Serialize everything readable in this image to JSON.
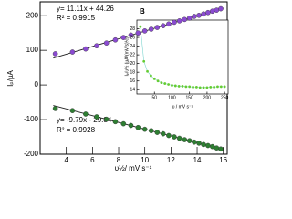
{
  "chart_data": [
    {
      "type": "scatter",
      "xlabel": "υ½/ mV s⁻¹",
      "ylabel": "Iₚ/µA",
      "annotations": [
        "y= 11.11x + 44.26",
        "R² = 0.9915",
        "y= -9.79x - 29.84",
        "R² = 0.9928"
      ],
      "xlim": [
        2,
        16.3
      ],
      "ylim": [
        -200,
        240
      ],
      "xticks": [
        4,
        6,
        8,
        10,
        12,
        14,
        16
      ],
      "yticks": [
        -200,
        -100,
        0,
        100,
        200
      ],
      "x": [
        3.16,
        4.47,
        5.48,
        6.32,
        7.07,
        7.75,
        8.37,
        8.94,
        9.49,
        10,
        10.49,
        10.95,
        11.4,
        11.83,
        12.25,
        12.65,
        13.04,
        13.42,
        13.78,
        14.14,
        14.49,
        14.83,
        15.17,
        15.49,
        15.81
      ],
      "series": [
        {
          "color": "#8a4bd0",
          "values": [
            90,
            95,
            104,
            113,
            121,
            130,
            137,
            144,
            150,
            156,
            161,
            166,
            171,
            176,
            181,
            185,
            189,
            193,
            198,
            201,
            205,
            209,
            213,
            216,
            220
          ]
        },
        {
          "color": "#2e7d32",
          "values": [
            -68,
            -74,
            -84,
            -92,
            -99,
            -106,
            -112,
            -117,
            -123,
            -128,
            -132,
            -137,
            -141,
            -146,
            -150,
            -154,
            -158,
            -161,
            -165,
            -168,
            -172,
            -175,
            -178,
            -182,
            -185
          ]
        }
      ],
      "fit_lines": [
        {
          "color": "#222222",
          "x": [
            3,
            16
          ],
          "values": [
            77.6,
            222.0
          ]
        },
        {
          "color": "#222222",
          "x": [
            3,
            16
          ],
          "values": [
            -59.2,
            -186.5
          ]
        }
      ]
    },
    {
      "type": "scatter",
      "title": "B",
      "xlabel": "υ / mV s⁻¹",
      "ylabel": "Iₚ/υ½ (µA/(mV/s)½)",
      "xlim": [
        0,
        260
      ],
      "ylim": [
        13,
        30
      ],
      "xticks": [
        50,
        100,
        150,
        200,
        250
      ],
      "yticks": [
        14,
        16,
        18,
        20,
        22,
        24,
        26,
        28
      ],
      "x": [
        10,
        20,
        30,
        40,
        50,
        60,
        70,
        80,
        90,
        100,
        110,
        120,
        130,
        140,
        150,
        160,
        170,
        180,
        190,
        200,
        210,
        220,
        230,
        240,
        250
      ],
      "series": [
        {
          "color": "#66cc33",
          "line_color": "#7fd6d0",
          "values": [
            28.5,
            20.5,
            18.2,
            17.2,
            16.5,
            16.0,
            15.6,
            15.4,
            15.2,
            15.0,
            14.9,
            14.8,
            14.8,
            14.7,
            14.7,
            14.6,
            14.6,
            14.5,
            14.5,
            14.5,
            14.6,
            14.6,
            14.7,
            14.7,
            14.7
          ]
        }
      ]
    }
  ]
}
